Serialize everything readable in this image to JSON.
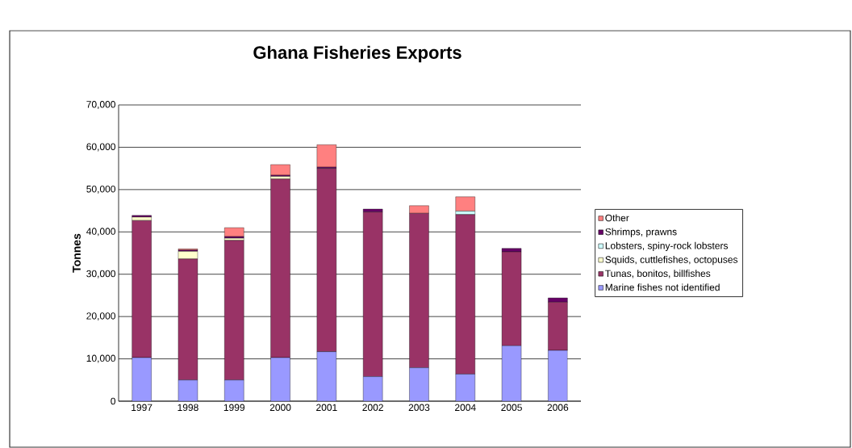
{
  "chart_data": {
    "type": "bar",
    "stacked": true,
    "title": "Ghana Fisheries Exports",
    "ylabel": "Tonnes",
    "categories": [
      "1997",
      "1998",
      "1999",
      "2000",
      "2001",
      "2002",
      "2003",
      "2004",
      "2005",
      "2006"
    ],
    "series": [
      {
        "name": "Marine fishes not identified",
        "color": "#9999ff",
        "values": [
          10300,
          5000,
          5000,
          10300,
          11700,
          5800,
          7900,
          6400,
          13100,
          12000
        ]
      },
      {
        "name": "Tunas, bonitos, billfishes",
        "color": "#993366",
        "values": [
          32400,
          28600,
          33000,
          42200,
          43300,
          38900,
          36500,
          37700,
          22200,
          11400
        ]
      },
      {
        "name": "Squids, cuttlefishes, octopuses",
        "color": "#ffffcc",
        "values": [
          800,
          1800,
          500,
          600,
          0,
          0,
          0,
          0,
          0,
          0
        ]
      },
      {
        "name": "Lobsters, spiny-rock lobsters",
        "color": "#ccffff",
        "values": [
          0,
          0,
          0,
          0,
          0,
          0,
          0,
          800,
          0,
          0
        ]
      },
      {
        "name": "Shrimps, prawns",
        "color": "#660066",
        "values": [
          400,
          300,
          400,
          300,
          300,
          700,
          0,
          0,
          800,
          1000
        ]
      },
      {
        "name": "Other",
        "color": "#ff8080",
        "values": [
          0,
          300,
          2100,
          2500,
          5300,
          0,
          1800,
          3400,
          0,
          0
        ]
      }
    ],
    "ylim": [
      0,
      70000
    ],
    "yticks": [
      {
        "value": 0,
        "label": "0"
      },
      {
        "value": 10000,
        "label": "10,000"
      },
      {
        "value": 20000,
        "label": "20,000"
      },
      {
        "value": 30000,
        "label": "30,000"
      },
      {
        "value": 40000,
        "label": "40,000"
      },
      {
        "value": 50000,
        "label": "50,000"
      },
      {
        "value": 60000,
        "label": "60,000"
      },
      {
        "value": 70000,
        "label": "70,000"
      }
    ],
    "grid": "y",
    "legend": "right"
  }
}
